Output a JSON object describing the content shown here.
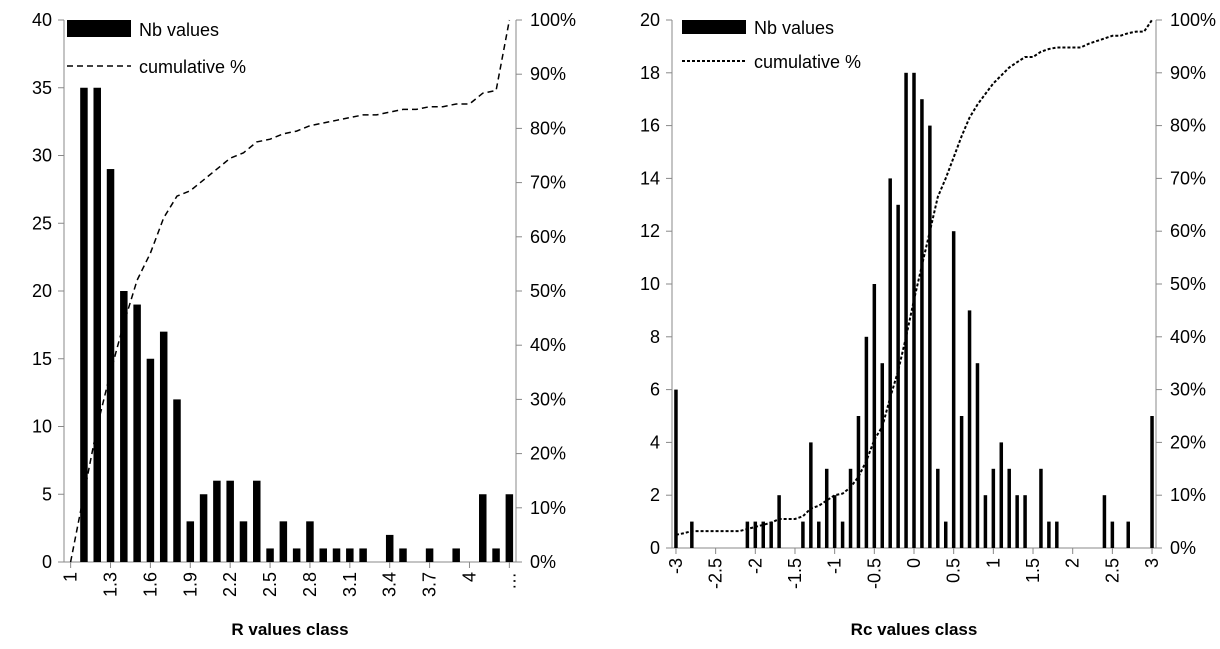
{
  "chart_data": [
    {
      "type": "bar",
      "xlabel": "R values class",
      "ylim": [
        0,
        40
      ],
      "y_ticks": [
        "0",
        "5",
        "10",
        "15",
        "20",
        "25",
        "30",
        "35",
        "40"
      ],
      "y2lim": [
        0,
        100
      ],
      "y2_ticks": [
        "0%",
        "10%",
        "20%",
        "30%",
        "40%",
        "50%",
        "60%",
        "70%",
        "80%",
        "90%",
        "100%"
      ],
      "x_tick_labels": [
        "1",
        "1.3",
        "1.6",
        "1.9",
        "2.2",
        "2.5",
        "2.8",
        "3.1",
        "3.4",
        "3.7",
        "4",
        "…"
      ],
      "legend": {
        "bars": "Nb values",
        "line": "cumulative %",
        "position": "top-left"
      },
      "categories": [
        "1",
        "1.1",
        "1.2",
        "1.3",
        "1.4",
        "1.5",
        "1.6",
        "1.7",
        "1.8",
        "1.9",
        "2",
        "2.1",
        "2.2",
        "2.3",
        "2.4",
        "2.5",
        "2.6",
        "2.7",
        "2.8",
        "2.9",
        "3",
        "3.1",
        "3.2",
        "3.3",
        "3.4",
        "3.5",
        "3.6",
        "3.7",
        "3.8",
        "3.9",
        "4",
        "4.1",
        "4.2",
        "…"
      ],
      "series": [
        {
          "name": "Nb values",
          "kind": "bar",
          "values": [
            0,
            35,
            35,
            29,
            20,
            19,
            15,
            17,
            12,
            3,
            5,
            6,
            6,
            3,
            6,
            1,
            3,
            1,
            3,
            1,
            1,
            1,
            1,
            0,
            2,
            1,
            0,
            1,
            0,
            1,
            0,
            5,
            1,
            5
          ]
        },
        {
          "name": "cumulative %",
          "kind": "line",
          "axis": "secondary",
          "values": [
            0,
            12.5,
            25,
            35,
            44,
            52,
            57,
            63.5,
            67.5,
            68.5,
            70.5,
            72.5,
            74.5,
            75.5,
            77.5,
            78,
            79,
            79.5,
            80.5,
            81,
            81.5,
            82,
            82.5,
            82.5,
            83,
            83.5,
            83.5,
            84,
            84,
            84.5,
            84.5,
            86.5,
            87,
            100
          ]
        }
      ]
    },
    {
      "type": "bar",
      "xlabel": "Rc values class",
      "ylim": [
        0,
        20
      ],
      "y_ticks": [
        "0",
        "2",
        "4",
        "6",
        "8",
        "10",
        "12",
        "14",
        "16",
        "18",
        "20"
      ],
      "y2lim": [
        0,
        100
      ],
      "y2_ticks": [
        "0%",
        "10%",
        "20%",
        "30%",
        "40%",
        "50%",
        "60%",
        "70%",
        "80%",
        "90%",
        "100%"
      ],
      "x_tick_labels": [
        "-3",
        "-2.5",
        "-2",
        "-1.5",
        "-1",
        "-0.5",
        "0",
        "0.5",
        "1",
        "1.5",
        "2",
        "2.5",
        "3"
      ],
      "legend": {
        "bars": "Nb values",
        "line": "cumulative %",
        "position": "top-left"
      },
      "x": [
        -3,
        -2.9,
        -2.8,
        -2.7,
        -2.6,
        -2.5,
        -2.4,
        -2.3,
        -2.2,
        -2.1,
        -2,
        -1.9,
        -1.8,
        -1.7,
        -1.6,
        -1.5,
        -1.4,
        -1.3,
        -1.2,
        -1.1,
        -1,
        -0.9,
        -0.8,
        -0.7,
        -0.6,
        -0.5,
        -0.4,
        -0.3,
        -0.2,
        -0.1,
        0,
        0.1,
        0.2,
        0.3,
        0.4,
        0.5,
        0.6,
        0.7,
        0.8,
        0.9,
        1,
        1.1,
        1.2,
        1.3,
        1.4,
        1.5,
        1.6,
        1.7,
        1.8,
        1.9,
        2,
        2.1,
        2.2,
        2.3,
        2.4,
        2.5,
        2.6,
        2.7,
        2.8,
        2.9,
        3
      ],
      "series": [
        {
          "name": "Nb values",
          "kind": "bar",
          "values": [
            6,
            0,
            1,
            0,
            0,
            0,
            0,
            0,
            0,
            1,
            1,
            1,
            1,
            2,
            0,
            0,
            1,
            4,
            1,
            3,
            2,
            1,
            3,
            5,
            8,
            10,
            7,
            14,
            13,
            18,
            18,
            17,
            16,
            3,
            1,
            12,
            5,
            9,
            7,
            2,
            3,
            4,
            3,
            2,
            2,
            0,
            3,
            1,
            1,
            0,
            0,
            0,
            0,
            0,
            2,
            1,
            0,
            1,
            0,
            0,
            5
          ]
        },
        {
          "name": "cumulative %",
          "kind": "line",
          "axis": "secondary",
          "values": [
            2.5,
            2.8,
            3.2,
            3.2,
            3.2,
            3.2,
            3.2,
            3.2,
            3.2,
            3.6,
            4.0,
            4.4,
            4.8,
            5.5,
            5.5,
            5.5,
            6.0,
            7.5,
            8.0,
            9.0,
            10.0,
            10.3,
            11.5,
            13.5,
            16.5,
            20.5,
            23.0,
            28.5,
            33.5,
            40.0,
            47.0,
            53.5,
            60.0,
            66.5,
            70.0,
            74.0,
            78.0,
            81.5,
            84.0,
            86.0,
            88.0,
            89.5,
            91.0,
            92.0,
            93.0,
            93.0,
            94.0,
            94.5,
            94.8,
            94.8,
            94.8,
            94.8,
            95.5,
            96.0,
            96.5,
            97.0,
            97.0,
            97.5,
            97.8,
            97.8,
            100
          ]
        }
      ]
    }
  ]
}
